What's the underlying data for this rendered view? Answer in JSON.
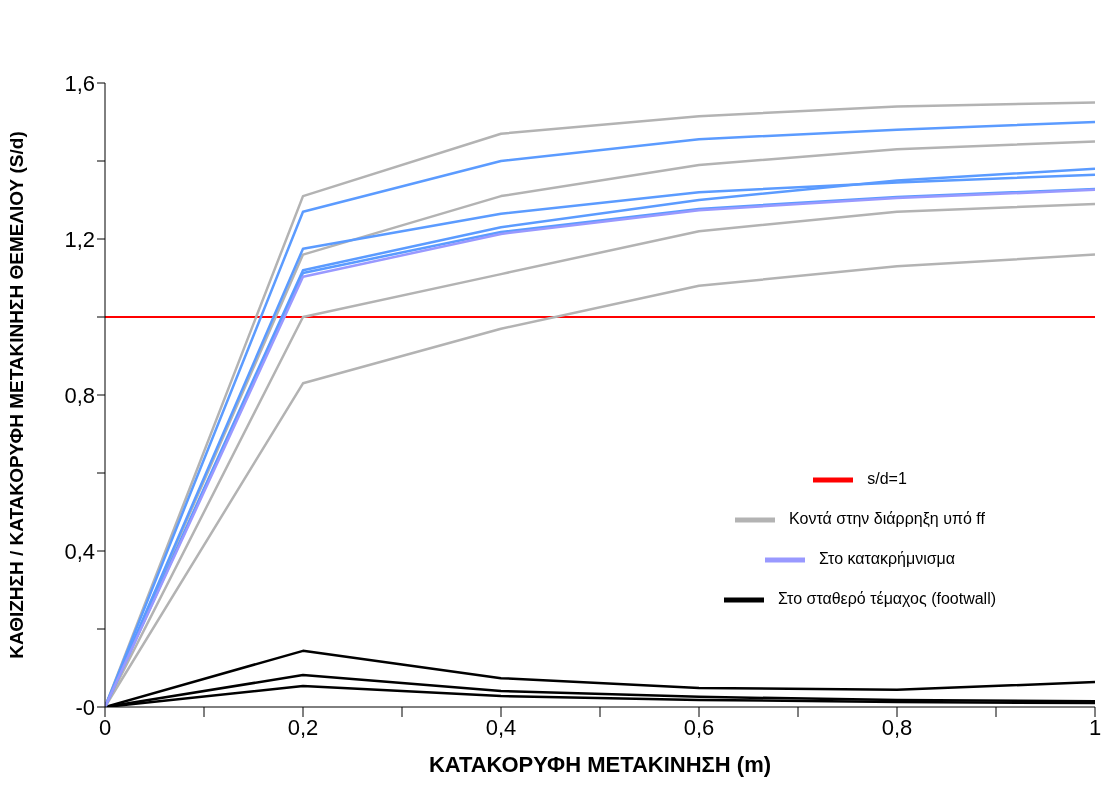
{
  "chart_data": {
    "type": "line",
    "xlabel": "ΚΑΤΑΚΟΡΥΦΗ ΜΕΤΑΚΙΝΗΣΗ (m)",
    "ylabel": "ΚΑΘΙΖΗΣΗ / ΚΑΤΑΚΟΡΥΦΗ ΜΕΤΑΚΙΝΗΣΗ ΘΕΜΕΛΙΟΥ (S/d)",
    "x": [
      0,
      0.2,
      0.4,
      0.6,
      0.8,
      1
    ],
    "xlim": [
      0,
      1
    ],
    "xticks": [
      0,
      {
        "value": 0.1,
        "label": null
      },
      {
        "value": 0.2,
        "label": "0,2"
      },
      {
        "value": 0.3,
        "label": null
      },
      {
        "value": 0.4,
        "label": "0,4"
      },
      {
        "value": 0.5,
        "label": null
      },
      {
        "value": 0.6,
        "label": "0,6"
      },
      {
        "value": 0.7,
        "label": null
      },
      {
        "value": 0.8,
        "label": "0,8"
      },
      {
        "value": 0.9,
        "label": null
      },
      1
    ],
    "ylim": [
      0,
      1.6
    ],
    "yticks": [
      {
        "value": 0,
        "label": "-0"
      },
      {
        "value": 0.2,
        "label": null
      },
      {
        "value": 0.4,
        "label": "0,4"
      },
      {
        "value": 0.6,
        "label": null
      },
      {
        "value": 0.8,
        "label": "0,8"
      },
      {
        "value": 1,
        "label": null
      },
      {
        "value": 1.2,
        "label": "1,2"
      },
      {
        "value": 1.4,
        "label": null
      },
      {
        "value": 1.6,
        "label": "1,6"
      }
    ],
    "grid": false,
    "legend": "bottom right",
    "marker": "none",
    "line_style": "solid",
    "series": [
      {
        "name": "Στο σταθερό τέμαχος (footwall)",
        "color": "#000000",
        "values": [
          0,
          0.144,
          0.074,
          0.049,
          0.044,
          0.064
        ]
      },
      {
        "color": "#000000",
        "values": [
          0,
          0.082,
          0.041,
          0.026,
          0.018,
          0.015
        ]
      },
      {
        "color": "#000000",
        "values": [
          0,
          0.054,
          0.028,
          0.018,
          0.013,
          0.01
        ]
      },
      {
        "name": "Κοντά στην διάρρηξη υπό ff",
        "color": "#b3b3b3",
        "values": [
          0,
          1.31,
          1.47,
          1.515,
          1.54,
          1.55
        ]
      },
      {
        "color": "#b3b3b3",
        "values": [
          0,
          1.16,
          1.31,
          1.39,
          1.43,
          1.45
        ]
      },
      {
        "color": "#b3b3b3",
        "values": [
          0,
          1.0,
          1.11,
          1.22,
          1.27,
          1.29
        ]
      },
      {
        "color": "#b3b3b3",
        "values": [
          0,
          0.83,
          0.97,
          1.08,
          1.13,
          1.16
        ]
      },
      {
        "color": "#5b9bff",
        "values": [
          0,
          1.27,
          1.4,
          1.456,
          1.48,
          1.5
        ]
      },
      {
        "color": "#5b9bff",
        "values": [
          0,
          1.175,
          1.265,
          1.32,
          1.345,
          1.365
        ]
      },
      {
        "color": "#5b9bff",
        "values": [
          0,
          1.12,
          1.23,
          1.3,
          1.35,
          1.38
        ]
      },
      {
        "color": "#5b9bff",
        "values": [
          0,
          1.113,
          1.218,
          1.277,
          1.308,
          1.328
        ]
      },
      {
        "name": "Στο κατακρήμνισμα",
        "color": "#9999ff",
        "values": [
          0,
          1.103,
          1.213,
          1.274,
          1.305,
          1.326
        ]
      }
    ],
    "ref_lines": [
      {
        "axis": "y",
        "value": 1,
        "label": "s/d=1",
        "color": "#ff0000",
        "line_style": "solid"
      }
    ]
  }
}
